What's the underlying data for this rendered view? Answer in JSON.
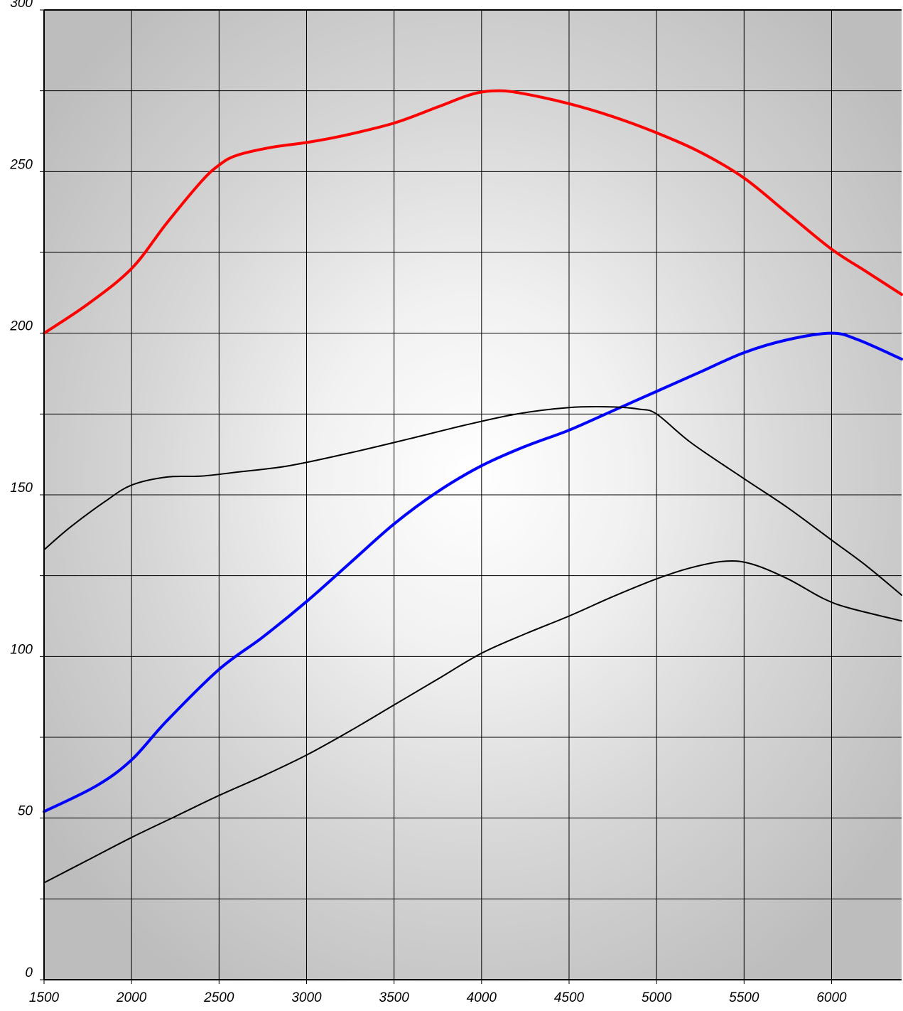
{
  "chart_data": {
    "type": "line",
    "title": "",
    "xlabel": "",
    "ylabel": "",
    "xlim": [
      1500,
      6400
    ],
    "ylim": [
      0,
      300
    ],
    "x_ticks": [
      1500,
      2000,
      2500,
      3000,
      3500,
      4000,
      4500,
      5000,
      5500,
      6000
    ],
    "x_tick_labels": [
      "1500",
      "2000",
      "2500",
      "3000",
      "3500",
      "4000",
      "4500",
      "5000",
      "5500",
      "6000"
    ],
    "y_ticks": [
      0,
      50,
      100,
      150,
      200,
      250,
      300
    ],
    "y_tick_labels": [
      "0",
      "50",
      "100",
      "150",
      "200",
      "250",
      "300"
    ],
    "y_minor_grid": [
      25,
      75,
      125,
      175,
      225,
      275
    ],
    "grid": true,
    "legend": "none",
    "background": "radial gradient, white center to gray edges",
    "series": [
      {
        "color": "#ff0000",
        "width": 4,
        "points": [
          [
            1500,
            200
          ],
          [
            1750,
            209
          ],
          [
            2000,
            220
          ],
          [
            2200,
            234
          ],
          [
            2400,
            247
          ],
          [
            2500,
            252
          ],
          [
            2600,
            255
          ],
          [
            2800,
            257.5
          ],
          [
            3000,
            259
          ],
          [
            3200,
            261
          ],
          [
            3500,
            265
          ],
          [
            3750,
            270
          ],
          [
            3950,
            274
          ],
          [
            4100,
            275
          ],
          [
            4250,
            274
          ],
          [
            4500,
            271
          ],
          [
            4750,
            267
          ],
          [
            5000,
            262
          ],
          [
            5250,
            256
          ],
          [
            5500,
            248
          ],
          [
            5750,
            237
          ],
          [
            6000,
            226
          ],
          [
            6200,
            219
          ],
          [
            6400,
            212
          ]
        ]
      },
      {
        "color": "#0000ff",
        "width": 4,
        "points": [
          [
            1500,
            52
          ],
          [
            1800,
            60
          ],
          [
            2000,
            68
          ],
          [
            2200,
            80
          ],
          [
            2500,
            96
          ],
          [
            2750,
            106
          ],
          [
            3000,
            117
          ],
          [
            3250,
            129
          ],
          [
            3500,
            141
          ],
          [
            3750,
            151
          ],
          [
            4000,
            159
          ],
          [
            4250,
            165
          ],
          [
            4500,
            170
          ],
          [
            4750,
            176
          ],
          [
            5000,
            182
          ],
          [
            5250,
            188
          ],
          [
            5500,
            194
          ],
          [
            5750,
            198
          ],
          [
            6000,
            200
          ],
          [
            6150,
            198
          ],
          [
            6400,
            192
          ]
        ]
      },
      {
        "color": "#000000",
        "width": 2,
        "points": [
          [
            1500,
            133
          ],
          [
            1650,
            140
          ],
          [
            1850,
            148
          ],
          [
            2000,
            153
          ],
          [
            2200,
            155.5
          ],
          [
            2400,
            155.8
          ],
          [
            2600,
            157
          ],
          [
            2900,
            159
          ],
          [
            3250,
            163
          ],
          [
            3600,
            167.5
          ],
          [
            3900,
            171.5
          ],
          [
            4200,
            175
          ],
          [
            4500,
            177
          ],
          [
            4750,
            177.2
          ],
          [
            4900,
            176.5
          ],
          [
            5000,
            175
          ],
          [
            5200,
            166
          ],
          [
            5500,
            155
          ],
          [
            5750,
            146
          ],
          [
            6000,
            136
          ],
          [
            6200,
            128
          ],
          [
            6400,
            119
          ]
        ]
      },
      {
        "color": "#000000",
        "width": 2,
        "points": [
          [
            1500,
            30
          ],
          [
            1750,
            37
          ],
          [
            2000,
            44
          ],
          [
            2250,
            50.5
          ],
          [
            2500,
            57
          ],
          [
            2750,
            63
          ],
          [
            3000,
            69.5
          ],
          [
            3250,
            77
          ],
          [
            3500,
            85
          ],
          [
            3750,
            93
          ],
          [
            4000,
            101
          ],
          [
            4250,
            107
          ],
          [
            4500,
            112.5
          ],
          [
            4750,
            118.5
          ],
          [
            5000,
            124
          ],
          [
            5200,
            127.5
          ],
          [
            5400,
            129.5
          ],
          [
            5550,
            128.5
          ],
          [
            5750,
            124
          ],
          [
            5950,
            118
          ],
          [
            6100,
            115
          ],
          [
            6400,
            111
          ]
        ]
      }
    ]
  }
}
